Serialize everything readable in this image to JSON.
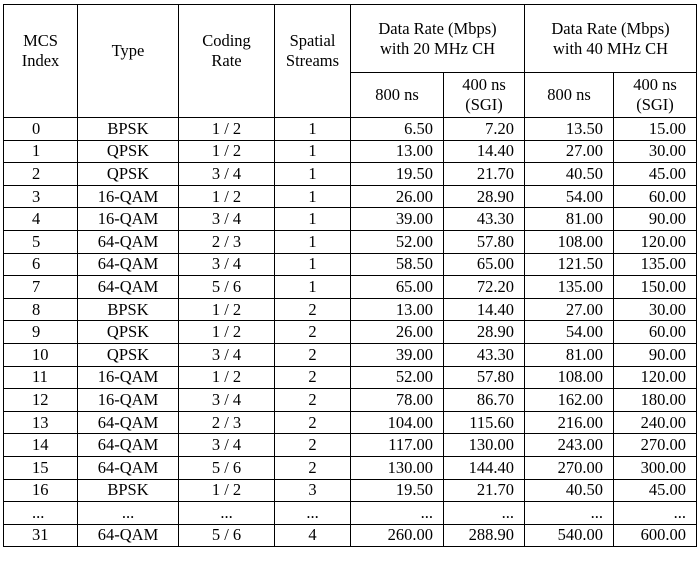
{
  "headers": {
    "mcs": [
      "MCS",
      "Index"
    ],
    "type": "Type",
    "coding": [
      "Coding",
      "Rate"
    ],
    "streams": [
      "Spatial",
      "Streams"
    ],
    "rate20": [
      "Data Rate (Mbps)",
      "with 20 MHz CH"
    ],
    "rate40": [
      "Data Rate (Mbps)",
      "with 40 MHz CH"
    ],
    "gi800": "800 ns",
    "gi400": [
      "400 ns",
      "(SGI)"
    ]
  },
  "rows": [
    [
      "0",
      "BPSK",
      "1 / 2",
      "1",
      "6.50",
      "7.20",
      "13.50",
      "15.00"
    ],
    [
      "1",
      "QPSK",
      "1 / 2",
      "1",
      "13.00",
      "14.40",
      "27.00",
      "30.00"
    ],
    [
      "2",
      "QPSK",
      "3 / 4",
      "1",
      "19.50",
      "21.70",
      "40.50",
      "45.00"
    ],
    [
      "3",
      "16-QAM",
      "1 / 2",
      "1",
      "26.00",
      "28.90",
      "54.00",
      "60.00"
    ],
    [
      "4",
      "16-QAM",
      "3 / 4",
      "1",
      "39.00",
      "43.30",
      "81.00",
      "90.00"
    ],
    [
      "5",
      "64-QAM",
      "2 / 3",
      "1",
      "52.00",
      "57.80",
      "108.00",
      "120.00"
    ],
    [
      "6",
      "64-QAM",
      "3 / 4",
      "1",
      "58.50",
      "65.00",
      "121.50",
      "135.00"
    ],
    [
      "7",
      "64-QAM",
      "5 / 6",
      "1",
      "65.00",
      "72.20",
      "135.00",
      "150.00"
    ],
    [
      "8",
      "BPSK",
      "1 / 2",
      "2",
      "13.00",
      "14.40",
      "27.00",
      "30.00"
    ],
    [
      "9",
      "QPSK",
      "1 / 2",
      "2",
      "26.00",
      "28.90",
      "54.00",
      "60.00"
    ],
    [
      "10",
      "QPSK",
      "3 / 4",
      "2",
      "39.00",
      "43.30",
      "81.00",
      "90.00"
    ],
    [
      "11",
      "16-QAM",
      "1 / 2",
      "2",
      "52.00",
      "57.80",
      "108.00",
      "120.00"
    ],
    [
      "12",
      "16-QAM",
      "3 / 4",
      "2",
      "78.00",
      "86.70",
      "162.00",
      "180.00"
    ],
    [
      "13",
      "64-QAM",
      "2 / 3",
      "2",
      "104.00",
      "115.60",
      "216.00",
      "240.00"
    ],
    [
      "14",
      "64-QAM",
      "3 / 4",
      "2",
      "117.00",
      "130.00",
      "243.00",
      "270.00"
    ],
    [
      "15",
      "64-QAM",
      "5 / 6",
      "2",
      "130.00",
      "144.40",
      "270.00",
      "300.00"
    ],
    [
      "16",
      "BPSK",
      "1 / 2",
      "3",
      "19.50",
      "21.70",
      "40.50",
      "45.00"
    ],
    [
      "...",
      "...",
      "...",
      "...",
      "...",
      "...",
      "...",
      "..."
    ],
    [
      "31",
      "64-QAM",
      "5 / 6",
      "4",
      "260.00",
      "288.90",
      "540.00",
      "600.00"
    ]
  ]
}
